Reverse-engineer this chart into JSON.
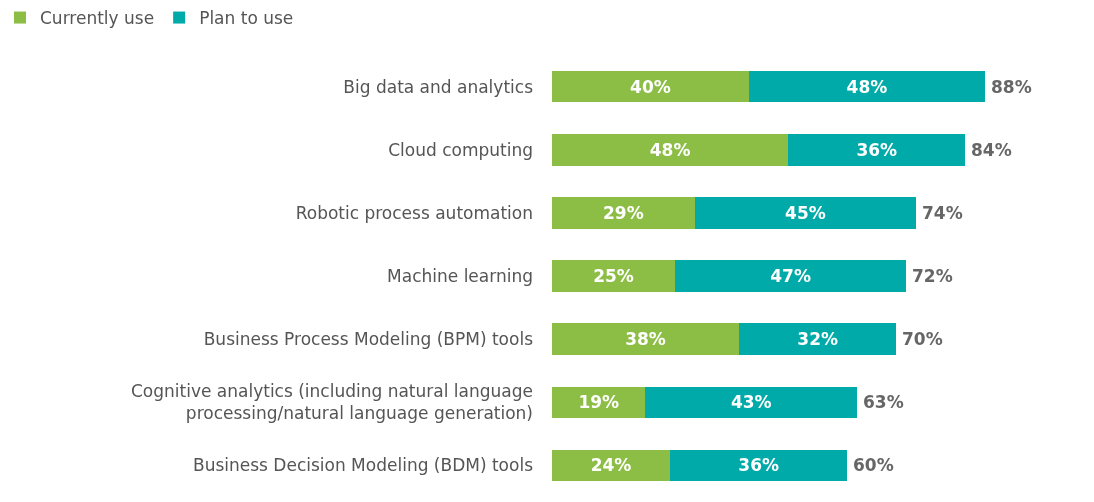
{
  "chart_data": {
    "type": "bar",
    "orientation": "horizontal",
    "stacked": true,
    "legend": "top left",
    "categories": [
      "Big data and analytics",
      "Cloud computing",
      "Robotic process automation",
      "Machine learning",
      "Business Process Modeling (BPM) tools",
      "Cognitive analytics (including natural language\nprocessing/natural language generation)",
      "Business Decision Modeling (BDM) tools"
    ],
    "series": [
      {
        "name": "Currently use",
        "color": "#8cbd45",
        "values": [
          40,
          48,
          29,
          25,
          38,
          19,
          24
        ],
        "value_labels": [
          "40%",
          "48%",
          "29%",
          "25%",
          "38%",
          "19%",
          "24%"
        ]
      },
      {
        "name": "Plan to use",
        "color": "#00aaa8",
        "values": [
          48,
          36,
          45,
          47,
          32,
          43,
          36
        ],
        "value_labels": [
          "48%",
          "36%",
          "45%",
          "47%",
          "32%",
          "43%",
          "36%"
        ]
      }
    ],
    "totals": [
      "88%",
      "84%",
      "74%",
      "72%",
      "70%",
      "63%",
      "60%"
    ]
  }
}
